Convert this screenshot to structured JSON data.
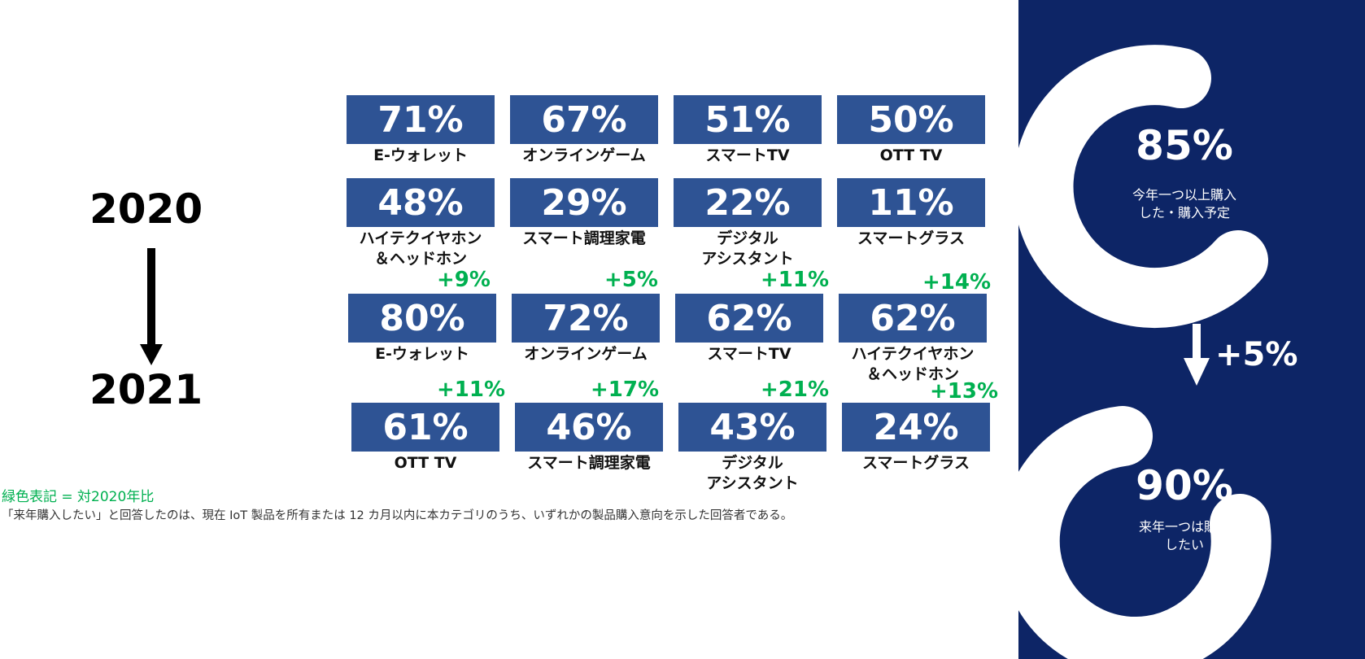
{
  "years": {
    "from": "2020",
    "to": "2021"
  },
  "grid": [
    {
      "value": "71%",
      "label": "E-ウォレット",
      "delta": ""
    },
    {
      "value": "67%",
      "label": "オンラインゲーム",
      "delta": ""
    },
    {
      "value": "51%",
      "label": "スマートTV",
      "delta": ""
    },
    {
      "value": "50%",
      "label": "OTT TV",
      "delta": ""
    },
    {
      "value": "48%",
      "label": "ハイテクイヤホン\n＆ヘッドホン",
      "delta": ""
    },
    {
      "value": "29%",
      "label": "スマート調理家電",
      "delta": ""
    },
    {
      "value": "22%",
      "label": "デジタル\nアシスタント",
      "delta": ""
    },
    {
      "value": "11%",
      "label": "スマートグラス",
      "delta": ""
    },
    {
      "value": "80%",
      "label": "E-ウォレット",
      "delta": "+9%"
    },
    {
      "value": "72%",
      "label": "オンラインゲーム",
      "delta": "+5%"
    },
    {
      "value": "62%",
      "label": "スマートTV",
      "delta": "+11%"
    },
    {
      "value": "62%",
      "label": "ハイテクイヤホン\n＆ヘッドホン",
      "delta": "+14%"
    },
    {
      "value": "61%",
      "label": "OTT TV",
      "delta": "+11%"
    },
    {
      "value": "46%",
      "label": "スマート調理家電",
      "delta": "+17%"
    },
    {
      "value": "43%",
      "label": "デジタル\nアシスタント",
      "delta": "+21%"
    },
    {
      "value": "24%",
      "label": "スマートグラス",
      "delta": "+13%"
    }
  ],
  "notes": {
    "green_legend": "緑色表記 = 対2020年比",
    "footnote": "「来年購入したい」と回答したのは、現在 IoT 製品を所有または 12 カ月以内に本カテゴリのうち、いずれかの製品購入意向を示した回答者である。"
  },
  "panel": {
    "top_value": "85%",
    "top_label": "今年一つ以上購入\nした・購入予定",
    "delta": "+5%",
    "bottom_value": "90%",
    "bottom_label": "来年一つは購入\nしたい"
  },
  "colors": {
    "tile_blue": "#2e5394",
    "panel_navy": "#0d2566",
    "delta_green": "#00b050"
  }
}
